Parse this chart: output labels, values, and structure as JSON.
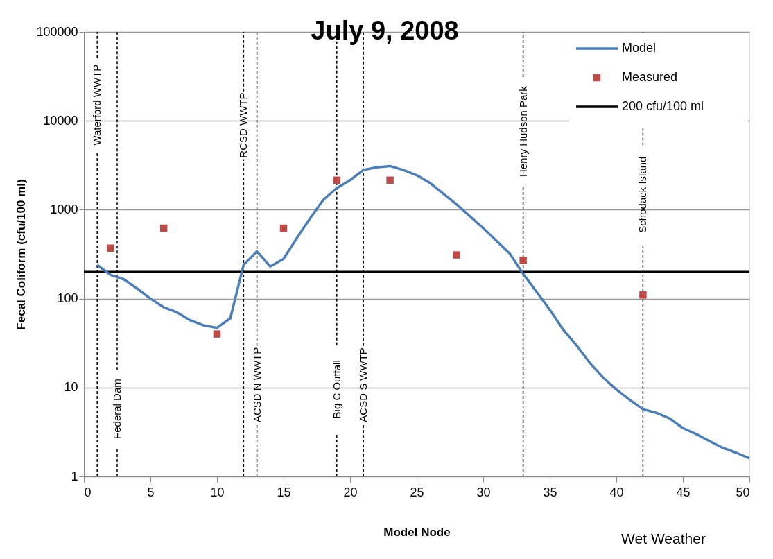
{
  "chart_data": {
    "type": "line",
    "title": "July 9, 2008",
    "xlabel": "Model Node",
    "ylabel": "Fecal Coliform  (cfu/100 ml)",
    "log": "y",
    "xlim": [
      0,
      50
    ],
    "xticks": [
      0,
      5,
      10,
      15,
      20,
      25,
      30,
      35,
      40,
      45,
      50
    ],
    "ylim": [
      1,
      100000
    ],
    "yticks": [
      1,
      10,
      100,
      1000,
      10000,
      100000
    ],
    "grid": "y",
    "legend": "top right",
    "series": [
      {
        "name": "Model",
        "color": "#4a7ebb",
        "marker": "none",
        "line_style": "solid",
        "x": [
          1,
          2,
          3,
          4,
          5,
          6,
          7,
          8,
          9,
          10,
          11,
          12,
          13,
          14,
          15,
          16,
          17,
          18,
          19,
          20,
          21,
          22,
          23,
          24,
          25,
          26,
          28,
          30,
          32,
          33,
          34,
          35,
          36,
          37,
          38,
          39,
          40,
          41,
          42,
          43,
          44,
          45,
          46,
          47,
          48,
          49,
          50
        ],
        "values": [
          240,
          185,
          165,
          130,
          100,
          80,
          70,
          57,
          50,
          47,
          60,
          240,
          340,
          230,
          280,
          480,
          800,
          1300,
          1750,
          2150,
          2800,
          3000,
          3100,
          2800,
          2450,
          2000,
          1150,
          620,
          320,
          190,
          120,
          75,
          45,
          30,
          19,
          13,
          9.5,
          7.3,
          5.7,
          5.2,
          4.5,
          3.5,
          3.0,
          2.5,
          2.1,
          1.85,
          1.6
        ]
      },
      {
        "name": "Measured",
        "type": "scatter",
        "color": "#be4b48",
        "marker": "square",
        "x": [
          2,
          6,
          10,
          15,
          19,
          23,
          28,
          33,
          42
        ],
        "values": [
          370,
          620,
          40,
          620,
          2150,
          2150,
          310,
          270,
          110
        ]
      },
      {
        "name": "200 cfu/100 ml",
        "color": "#000000",
        "marker": "none",
        "line_style": "solid",
        "x": [
          0,
          50
        ],
        "values": [
          200,
          200
        ]
      }
    ],
    "ref_lines": [
      {
        "axis": "x",
        "value": 1,
        "label": "Waterford WWTP",
        "color": "#000000",
        "line_style": "dashed"
      },
      {
        "axis": "x",
        "value": 2.5,
        "label": "Federal Dam",
        "color": "#000000",
        "line_style": "dashed"
      },
      {
        "axis": "x",
        "value": 12,
        "label": "RCSD WWTP",
        "color": "#000000",
        "line_style": "dashed"
      },
      {
        "axis": "x",
        "value": 13,
        "label": "ACSD N WWTP",
        "color": "#000000",
        "line_style": "dashed"
      },
      {
        "axis": "x",
        "value": 19,
        "label": "Big C Outfall",
        "color": "#000000",
        "line_style": "dashed"
      },
      {
        "axis": "x",
        "value": 21,
        "label": "ACSD S WWTP",
        "color": "#000000",
        "line_style": "dashed"
      },
      {
        "axis": "x",
        "value": 33,
        "label": "Henry Hudson Park",
        "color": "#000000",
        "line_style": "dashed"
      },
      {
        "axis": "x",
        "value": 42,
        "label": "Schodack Island",
        "color": "#000000",
        "line_style": "dashed"
      }
    ],
    "annotations": [
      "Wet Weather"
    ]
  }
}
